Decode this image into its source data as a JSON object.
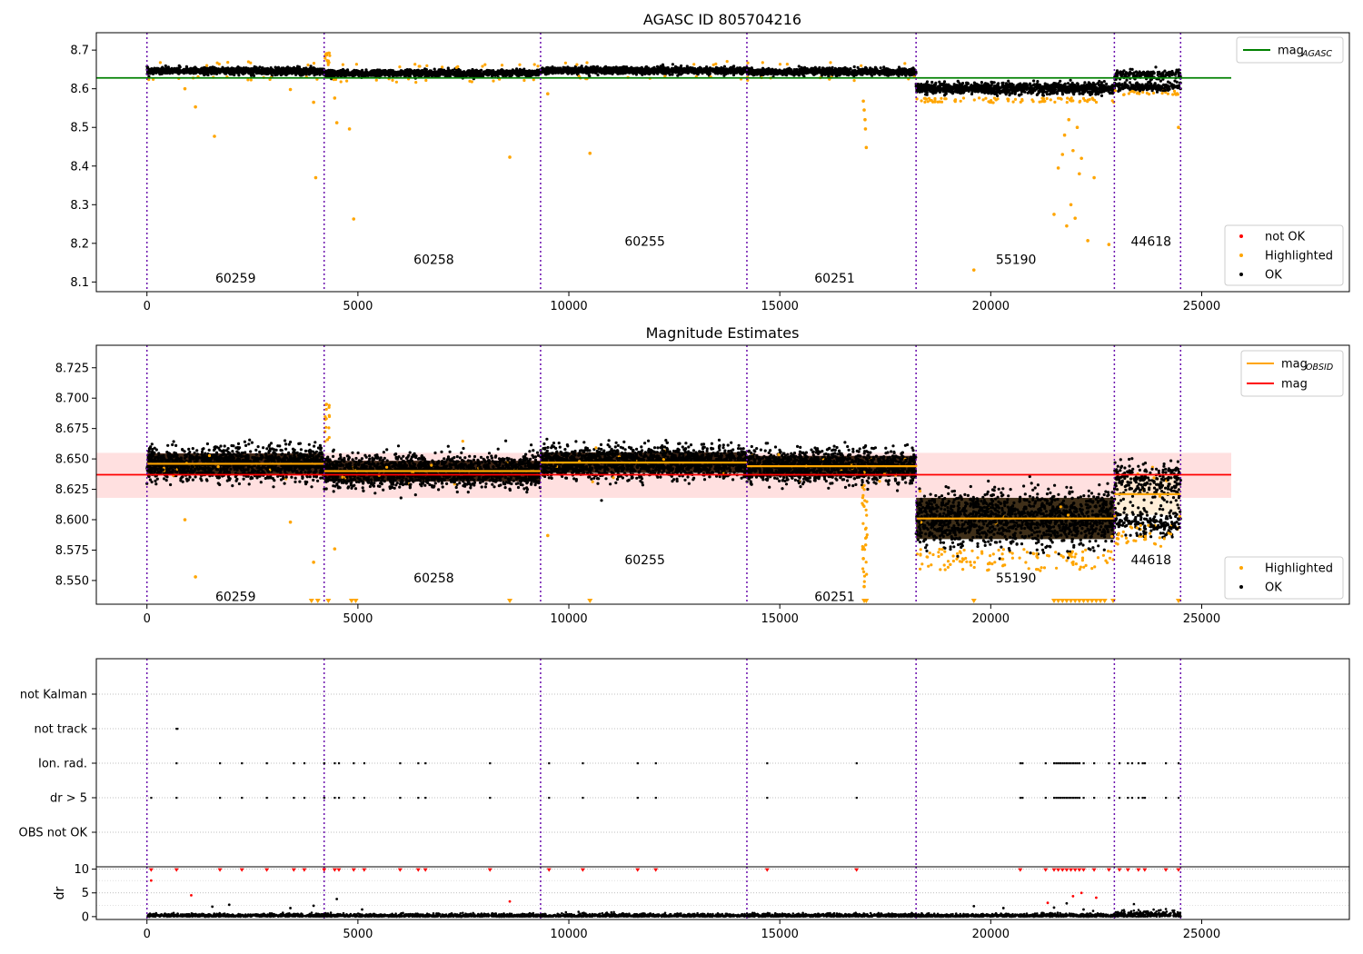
{
  "chart_data": [
    {
      "type": "scatter",
      "title": "AGASC ID 805704216",
      "xlim": [
        -1200,
        28500
      ],
      "ylim": [
        8.075,
        8.745
      ],
      "xticks": [
        0,
        5000,
        10000,
        15000,
        20000,
        25000
      ],
      "yticks": [
        8.1,
        8.2,
        8.3,
        8.4,
        8.5,
        8.6,
        8.7
      ],
      "legend_top": {
        "placement": "top-right",
        "entries": [
          {
            "label": "mag",
            "sub": "AGASC",
            "color": "#008000"
          }
        ]
      },
      "legend_bottom": {
        "placement": "bottom-right",
        "entries": [
          {
            "label": "not OK",
            "color": "#ff0000"
          },
          {
            "label": "Highlighted",
            "color": "#ffa500"
          },
          {
            "label": "OK",
            "color": "#000000"
          }
        ]
      },
      "mag_agasc": 8.628,
      "agasc_line_x": [
        -1200,
        25700
      ],
      "obs_boundaries": [
        0,
        4200,
        9330,
        14220,
        18230,
        22930,
        24500
      ],
      "observations": [
        {
          "obsid": "60259",
          "x0": 0,
          "x1": 4200,
          "mean": 8.646,
          "label_x": 2100,
          "label_y": 8.11
        },
        {
          "obsid": "60258",
          "x0": 4200,
          "x1": 9330,
          "mean": 8.64,
          "label_x": 6800,
          "label_y": 8.158
        },
        {
          "obsid": "60255",
          "x0": 9330,
          "x1": 14220,
          "mean": 8.647,
          "label_x": 11800,
          "label_y": 8.205
        },
        {
          "obsid": "60251",
          "x0": 14220,
          "x1": 18230,
          "mean": 8.644,
          "label_x": 16300,
          "label_y": 8.11
        },
        {
          "obsid": "55190",
          "x0": 18230,
          "x1": 22930,
          "mean": 8.601,
          "label_x": 20600,
          "label_y": 8.158
        },
        {
          "obsid": "44618",
          "x0": 22930,
          "x1": 24500,
          "mean": 8.621,
          "label_x": 23800,
          "label_y": 8.205
        }
      ],
      "highlighted_outliers": [
        {
          "x": 900,
          "y": 8.6
        },
        {
          "x": 1150,
          "y": 8.553
        },
        {
          "x": 1600,
          "y": 8.477
        },
        {
          "x": 3400,
          "y": 8.598
        },
        {
          "x": 3950,
          "y": 8.565
        },
        {
          "x": 4000,
          "y": 8.37
        },
        {
          "x": 4450,
          "y": 8.576
        },
        {
          "x": 4500,
          "y": 8.512
        },
        {
          "x": 4800,
          "y": 8.496
        },
        {
          "x": 4900,
          "y": 8.263
        },
        {
          "x": 8600,
          "y": 8.423
        },
        {
          "x": 9500,
          "y": 8.587
        },
        {
          "x": 10500,
          "y": 8.433
        },
        {
          "x": 16980,
          "y": 8.568
        },
        {
          "x": 17000,
          "y": 8.545
        },
        {
          "x": 17020,
          "y": 8.52
        },
        {
          "x": 17030,
          "y": 8.496
        },
        {
          "x": 17050,
          "y": 8.448
        },
        {
          "x": 19600,
          "y": 8.131
        },
        {
          "x": 21500,
          "y": 8.275
        },
        {
          "x": 21600,
          "y": 8.395
        },
        {
          "x": 21700,
          "y": 8.43
        },
        {
          "x": 21750,
          "y": 8.48
        },
        {
          "x": 21800,
          "y": 8.245
        },
        {
          "x": 21850,
          "y": 8.52
        },
        {
          "x": 21900,
          "y": 8.3
        },
        {
          "x": 21950,
          "y": 8.44
        },
        {
          "x": 22000,
          "y": 8.265
        },
        {
          "x": 22050,
          "y": 8.5
        },
        {
          "x": 22100,
          "y": 8.38
        },
        {
          "x": 22150,
          "y": 8.42
        },
        {
          "x": 22300,
          "y": 8.207
        },
        {
          "x": 22450,
          "y": 8.37
        },
        {
          "x": 22800,
          "y": 8.197
        },
        {
          "x": 24450,
          "y": 8.5
        }
      ]
    },
    {
      "type": "scatter",
      "title": "Magnitude Estimates",
      "xlim": [
        -1200,
        28500
      ],
      "ylim": [
        8.5305,
        8.7435
      ],
      "xticks": [
        0,
        5000,
        10000,
        15000,
        20000,
        25000
      ],
      "yticks": [
        8.55,
        8.575,
        8.6,
        8.625,
        8.65,
        8.675,
        8.7,
        8.725
      ],
      "ytick_labels": [
        "8.550",
        "8.575",
        "8.600",
        "8.625",
        "8.650",
        "8.675",
        "8.700",
        "8.725"
      ],
      "legend_top": {
        "placement": "top-right",
        "entries": [
          {
            "label": "mag",
            "sub": "OBSID",
            "color": "#ffa500"
          },
          {
            "label": "mag",
            "sub": "",
            "color": "#ff0000"
          }
        ]
      },
      "legend_bottom": {
        "placement": "bottom-right",
        "entries": [
          {
            "label": "Highlighted",
            "color": "#ffa500"
          },
          {
            "label": "OK",
            "color": "#000000"
          }
        ]
      },
      "mag": 8.637,
      "mag_band": [
        8.618,
        8.655
      ],
      "mag_line_x": [
        -1200,
        25700
      ],
      "obsid_label_y": [
        8.537,
        8.552,
        8.567,
        8.537,
        8.552,
        8.567
      ],
      "clipped_markers_x": [
        3900,
        4050,
        4300,
        4850,
        4950,
        8600,
        10500,
        17000,
        17050,
        19600,
        21500,
        21600,
        21700,
        21800,
        21900,
        22000,
        22100,
        22200,
        22300,
        22400,
        22500,
        22600,
        22700,
        22900,
        24450
      ]
    },
    {
      "type": "scatter",
      "title": "",
      "xlim": [
        -1200,
        28500
      ],
      "categories": [
        "not Kalman",
        "not track",
        "Ion. rad.",
        "dr > 5",
        "OBS not OK"
      ],
      "flag_times": {
        "not track": [
          700,
          720
        ],
        "Ion. rad.": [
          700,
          1730,
          2250,
          2840,
          3480,
          3730,
          4200,
          4450,
          4550,
          4900,
          5150,
          6000,
          6430,
          6600,
          8130,
          9530,
          10330,
          11630,
          12060,
          14700,
          16820,
          20700,
          20750,
          21300,
          21500,
          21550,
          21600,
          21650,
          21700,
          21750,
          21800,
          21850,
          21900,
          21950,
          22000,
          22050,
          22100,
          22200,
          22450,
          22800,
          23050,
          23250,
          23350,
          23500,
          23600,
          23650,
          24150,
          24450
        ],
        "dr > 5": [
          100,
          700,
          1730,
          2250,
          2840,
          3480,
          3730,
          4200,
          4450,
          4550,
          4900,
          5150,
          6000,
          6430,
          6600,
          8130,
          9530,
          10330,
          11630,
          12060,
          14700,
          16820,
          20700,
          20750,
          21300,
          21500,
          21550,
          21600,
          21650,
          21700,
          21750,
          21800,
          21850,
          21900,
          21950,
          22000,
          22050,
          22100,
          22200,
          22450,
          22800,
          23050,
          23250,
          23350,
          23500,
          23600,
          23650,
          24150,
          24450
        ]
      }
    },
    {
      "type": "scatter",
      "title": "",
      "ylabel": "dr",
      "xlim": [
        -1200,
        28500
      ],
      "ylim": [
        -0.6,
        10.5
      ],
      "xticks": [
        0,
        5000,
        10000,
        15000,
        20000,
        25000
      ],
      "yticks": [
        0,
        5,
        10
      ],
      "dr_clipped_x": [
        100,
        700,
        1730,
        2250,
        2840,
        3480,
        3730,
        4200,
        4450,
        4550,
        4900,
        5150,
        6000,
        6430,
        6600,
        8130,
        9530,
        10330,
        11630,
        12060,
        14700,
        16820,
        20700,
        21300,
        21500,
        21600,
        21700,
        21800,
        21900,
        22000,
        22100,
        22200,
        22450,
        22800,
        23050,
        23250,
        23500,
        23650,
        24150,
        24450
      ],
      "dr_red_points": [
        {
          "x": 100,
          "y": 7.6
        },
        {
          "x": 1050,
          "y": 4.5
        },
        {
          "x": 8600,
          "y": 3.2
        },
        {
          "x": 21350,
          "y": 2.9
        },
        {
          "x": 21950,
          "y": 4.3
        },
        {
          "x": 22150,
          "y": 5.0
        },
        {
          "x": 22500,
          "y": 4.0
        }
      ],
      "dr_black_points": [
        {
          "x": 1550,
          "y": 2.1
        },
        {
          "x": 1950,
          "y": 2.5
        },
        {
          "x": 3400,
          "y": 1.8
        },
        {
          "x": 3950,
          "y": 2.3
        },
        {
          "x": 4500,
          "y": 3.7
        },
        {
          "x": 5100,
          "y": 1.5
        },
        {
          "x": 19600,
          "y": 2.2
        },
        {
          "x": 20300,
          "y": 1.8
        },
        {
          "x": 21500,
          "y": 1.9
        },
        {
          "x": 21800,
          "y": 2.8
        },
        {
          "x": 22200,
          "y": 1.5
        }
      ]
    }
  ]
}
